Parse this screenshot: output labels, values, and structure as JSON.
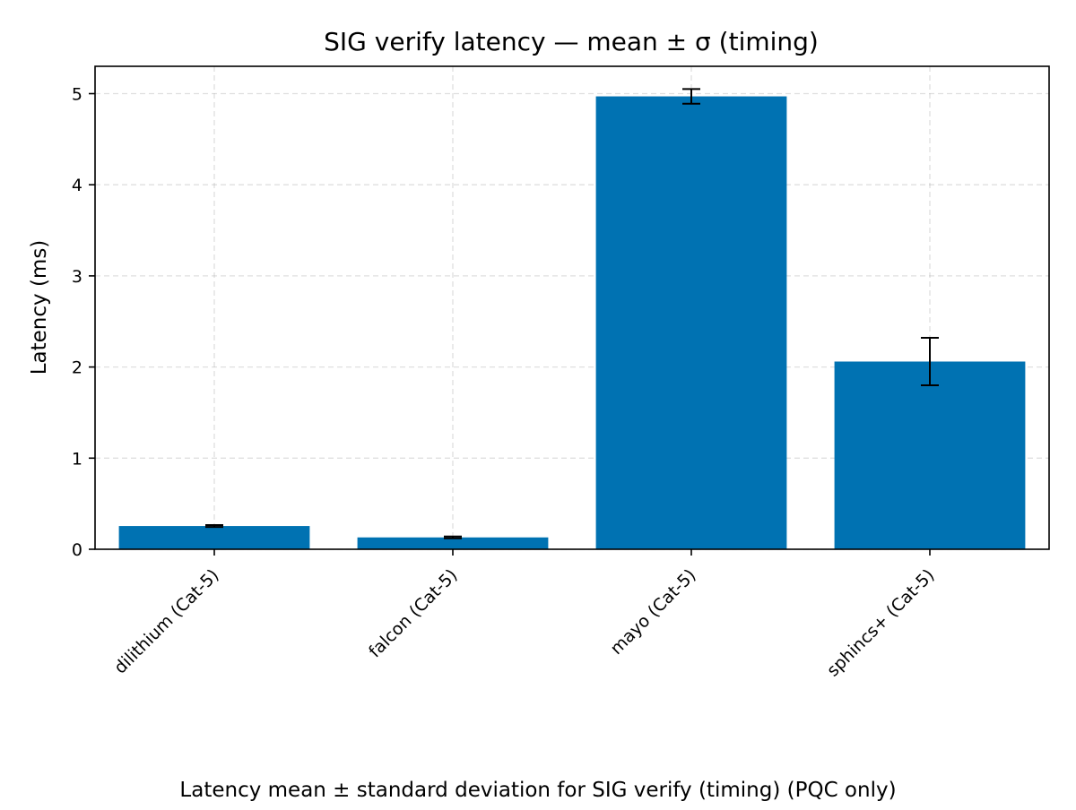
{
  "chart_data": {
    "type": "bar",
    "title": "SIG verify latency — mean ± σ (timing)",
    "xlabel": "",
    "ylabel": "Latency (ms)",
    "categories": [
      "dilithium (Cat-5)",
      "falcon (Cat-5)",
      "mayo (Cat-5)",
      "sphincs+ (Cat-5)"
    ],
    "values": [
      0.255,
      0.13,
      4.97,
      2.06
    ],
    "errors": [
      0.01,
      0.01,
      0.08,
      0.26
    ],
    "ylim": [
      0,
      5.3
    ],
    "yticks": [
      0,
      1,
      2,
      3,
      4,
      5
    ],
    "grid": true,
    "legend": "none",
    "bar_color": "#0072b2",
    "error_color": "#000000",
    "caption": "Latency mean ± standard deviation for SIG verify (timing) (PQC only)"
  }
}
